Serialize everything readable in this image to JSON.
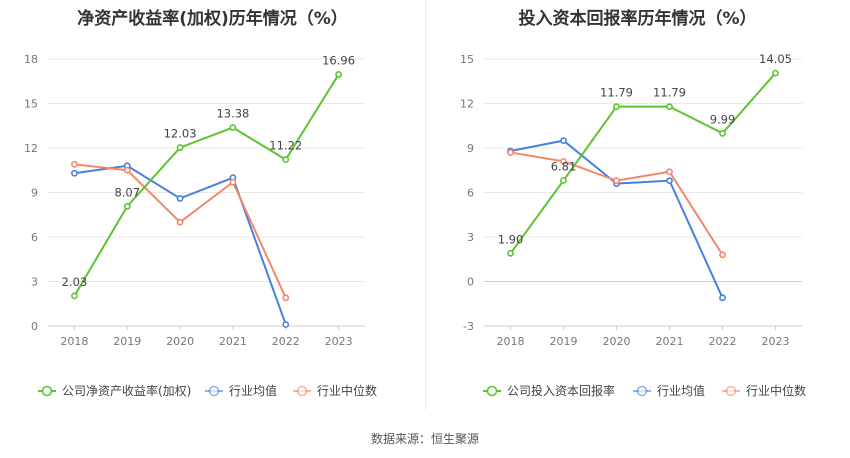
{
  "source_text": "数据来源：恒生聚源",
  "chart_data": [
    {
      "type": "line",
      "title": "净资产收益率(加权)历年情况（%）",
      "categories": [
        "2018",
        "2019",
        "2020",
        "2021",
        "2022",
        "2023"
      ],
      "ylim": [
        0,
        18
      ],
      "yticks": [
        0,
        3,
        6,
        9,
        12,
        15,
        18
      ],
      "grid": true,
      "legend_position": "bottom",
      "series": [
        {
          "name": "公司净资产收益率(加权)",
          "color": "#5ac530",
          "values": [
            2.03,
            8.07,
            12.03,
            13.38,
            11.22,
            16.96
          ],
          "show_labels": true
        },
        {
          "name": "行业均值",
          "color": "#4a7fde",
          "values": [
            10.3,
            10.8,
            8.6,
            10.0,
            0.1,
            null
          ],
          "show_labels": false
        },
        {
          "name": "行业中位数",
          "color": "#f2876a",
          "values": [
            10.9,
            10.5,
            7.0,
            9.7,
            1.9,
            null
          ],
          "show_labels": false
        }
      ]
    },
    {
      "type": "line",
      "title": "投入资本回报率历年情况（%）",
      "categories": [
        "2018",
        "2019",
        "2020",
        "2021",
        "2022",
        "2023"
      ],
      "ylim": [
        -3,
        15
      ],
      "yticks": [
        -3,
        0,
        3,
        6,
        9,
        12,
        15
      ],
      "grid": true,
      "legend_position": "bottom",
      "series": [
        {
          "name": "公司投入资本回报率",
          "color": "#5ac530",
          "values": [
            1.9,
            6.81,
            11.79,
            11.79,
            9.99,
            14.05
          ],
          "show_labels": true
        },
        {
          "name": "行业均值",
          "color": "#4a7fde",
          "values": [
            8.8,
            9.5,
            6.6,
            6.8,
            -1.1,
            null
          ],
          "show_labels": false
        },
        {
          "name": "行业中位数",
          "color": "#f2876a",
          "values": [
            8.7,
            8.1,
            6.8,
            7.4,
            1.8,
            null
          ],
          "show_labels": false
        }
      ]
    }
  ]
}
